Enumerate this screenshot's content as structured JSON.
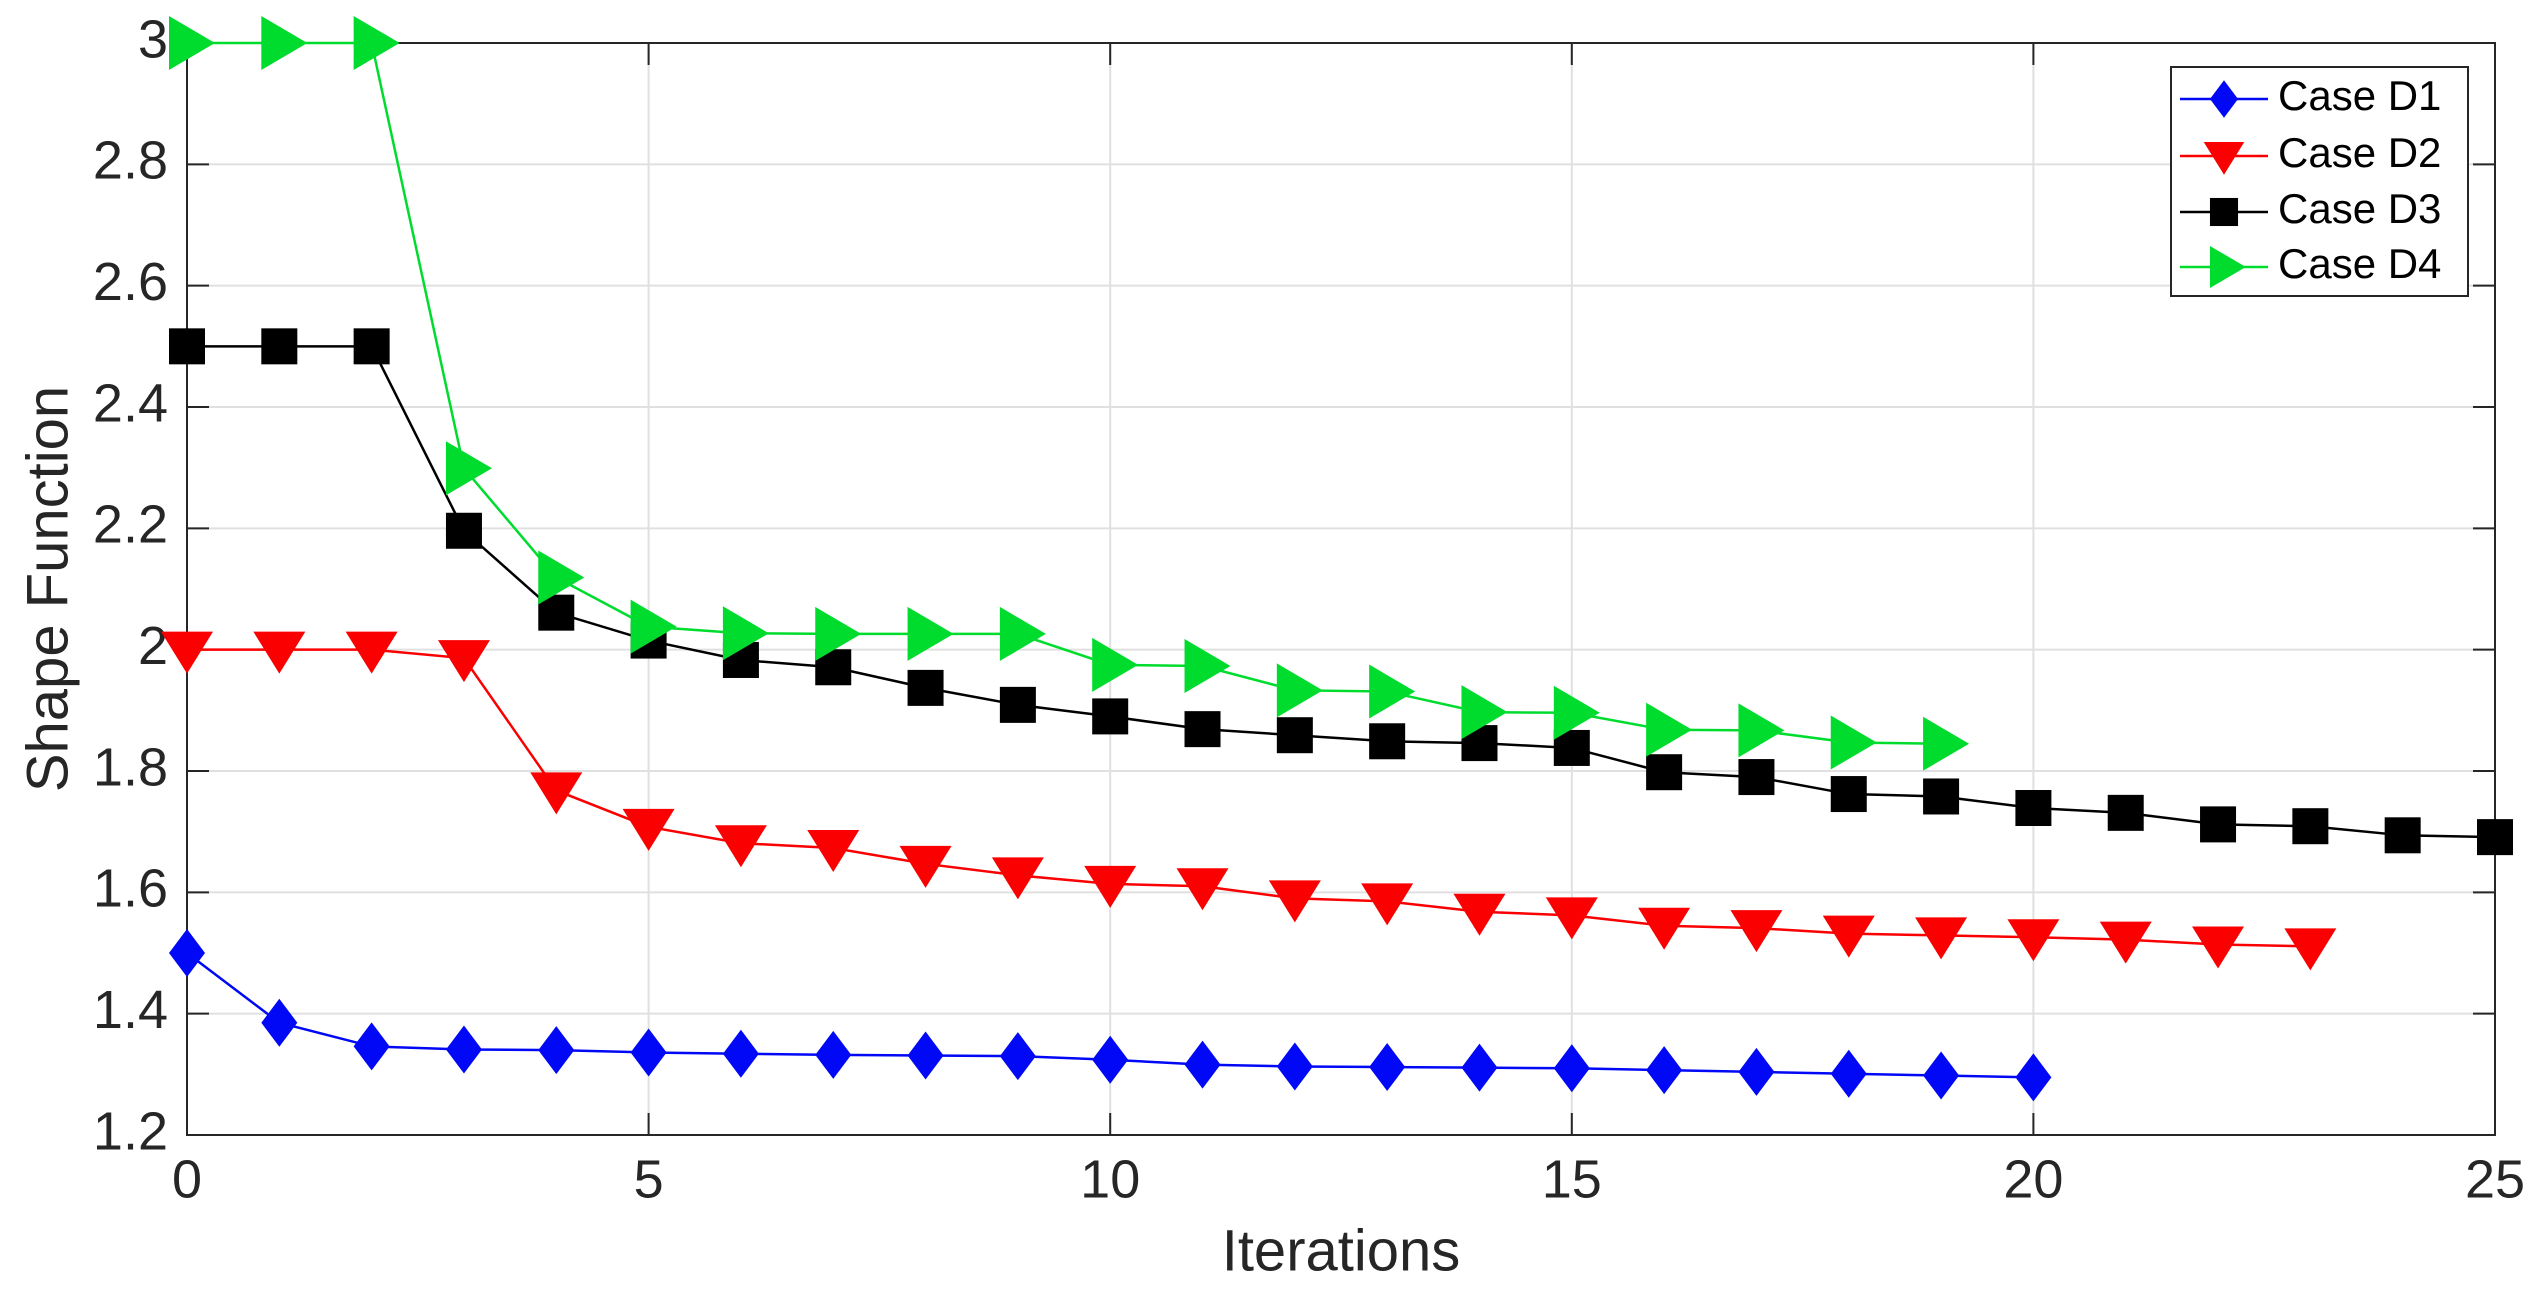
{
  "figure": {
    "background": "#ffffff",
    "axis_color": "#262626",
    "grid_color": "#e0e0e0",
    "tick_label_color": "#262626",
    "legend_background": "#ffffff",
    "legend_border_color": "#262626",
    "legend_text_color": "#000000"
  },
  "chart_data": {
    "type": "line",
    "title": "",
    "xlabel": "Iterations",
    "ylabel": "Shape Function",
    "xlim": [
      0,
      25
    ],
    "ylim": [
      1.2,
      3.0
    ],
    "grid": true,
    "legend_position": "top-right",
    "x_ticks": [
      0,
      5,
      10,
      15,
      20,
      25
    ],
    "x_tick_labels": [
      "0",
      "5",
      "10",
      "15",
      "20",
      "25"
    ],
    "y_ticks": [
      1.2,
      1.4,
      1.6,
      1.8,
      2.0,
      2.2,
      2.4,
      2.6,
      2.8,
      3.0
    ],
    "y_tick_labels": [
      "1.2",
      "1.4",
      "1.6",
      "1.8",
      "2",
      "2.2",
      "2.4",
      "2.6",
      "2.8",
      "3"
    ],
    "series": [
      {
        "name": "Case D1",
        "color": "#0008f5",
        "marker": "diamond",
        "x": [
          0,
          1,
          2,
          3,
          4,
          5,
          6,
          7,
          8,
          9,
          10,
          11,
          12,
          13,
          14,
          15,
          16,
          17,
          18,
          19,
          20
        ],
        "values": [
          1.5,
          1.385,
          1.346,
          1.341,
          1.34,
          1.336,
          1.334,
          1.332,
          1.331,
          1.33,
          1.324,
          1.316,
          1.313,
          1.312,
          1.311,
          1.31,
          1.307,
          1.304,
          1.301,
          1.298,
          1.295
        ]
      },
      {
        "name": "Case D2",
        "color": "#fa0000",
        "marker": "triangle-down",
        "x": [
          0,
          1,
          2,
          3,
          4,
          5,
          6,
          7,
          8,
          9,
          10,
          11,
          12,
          13,
          14,
          15,
          16,
          17,
          18,
          19,
          20,
          21,
          22,
          23
        ],
        "values": [
          2.0,
          2.0,
          2.0,
          1.986,
          1.768,
          1.708,
          1.681,
          1.673,
          1.647,
          1.628,
          1.614,
          1.61,
          1.59,
          1.585,
          1.568,
          1.562,
          1.545,
          1.541,
          1.532,
          1.529,
          1.526,
          1.522,
          1.514,
          1.511
        ]
      },
      {
        "name": "Case D3",
        "color": "#000000",
        "marker": "square",
        "x": [
          0,
          1,
          2,
          3,
          4,
          5,
          6,
          7,
          8,
          9,
          10,
          11,
          12,
          13,
          14,
          15,
          16,
          17,
          18,
          19,
          20,
          21,
          22,
          23,
          24,
          25
        ],
        "values": [
          2.5,
          2.5,
          2.5,
          2.196,
          2.061,
          2.015,
          1.983,
          1.971,
          1.937,
          1.909,
          1.89,
          1.869,
          1.859,
          1.849,
          1.846,
          1.838,
          1.798,
          1.79,
          1.762,
          1.758,
          1.739,
          1.731,
          1.712,
          1.709,
          1.694,
          1.691
        ]
      },
      {
        "name": "Case D4",
        "color": "#00dc2e",
        "marker": "triangle-right",
        "x": [
          0,
          1,
          2,
          3,
          4,
          5,
          6,
          7,
          8,
          9,
          10,
          11,
          12,
          13,
          14,
          15,
          16,
          17,
          18,
          19
        ],
        "values": [
          3.0,
          3.0,
          3.0,
          2.299,
          2.119,
          2.038,
          2.027,
          2.026,
          2.026,
          2.026,
          1.975,
          1.973,
          1.933,
          1.931,
          1.897,
          1.896,
          1.868,
          1.867,
          1.847,
          1.845
        ]
      }
    ]
  }
}
